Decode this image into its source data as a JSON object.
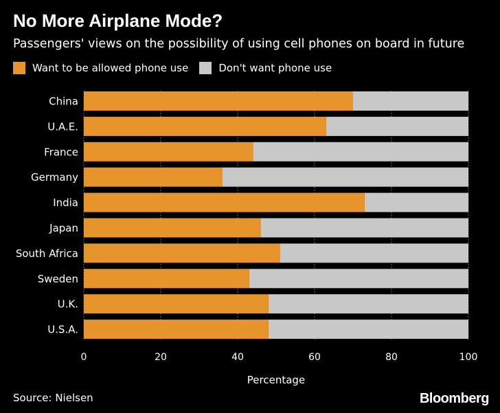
{
  "colors": {
    "background": "#000000",
    "want": "#e8942c",
    "dont_want": "#c8c8c8",
    "grid": "#6e6e6e",
    "text": "#ffffff"
  },
  "header": {
    "title": "No More Airplane Mode?",
    "subtitle": "Passengers' views on the possibility of using cell phones on board in future"
  },
  "legend": {
    "want_label": "Want to be allowed phone use",
    "dont_want_label": "Don't want phone use"
  },
  "chart_data": {
    "type": "bar",
    "orientation": "horizontal",
    "stacked": true,
    "title": "No More Airplane Mode?",
    "subtitle": "Passengers' views on the possibility of using cell phones on board in future",
    "categories": [
      "China",
      "U.A.E.",
      "France",
      "Germany",
      "India",
      "Japan",
      "South Africa",
      "Sweden",
      "U.K.",
      "U.S.A."
    ],
    "series": [
      {
        "name": "Want to be allowed phone use",
        "values": [
          70,
          63,
          44,
          36,
          73,
          46,
          51,
          43,
          48,
          48
        ]
      },
      {
        "name": "Don't want phone use",
        "values": [
          30,
          37,
          56,
          64,
          27,
          54,
          49,
          57,
          52,
          52
        ]
      }
    ],
    "xlabel": "Percentage",
    "ylabel": "",
    "xlim": [
      0,
      100
    ],
    "xticks": [
      0,
      20,
      40,
      60,
      80,
      100
    ],
    "grid": true,
    "legend_position": "top-left"
  },
  "footer": {
    "source": "Source: Nielsen",
    "brand": "Bloomberg"
  }
}
